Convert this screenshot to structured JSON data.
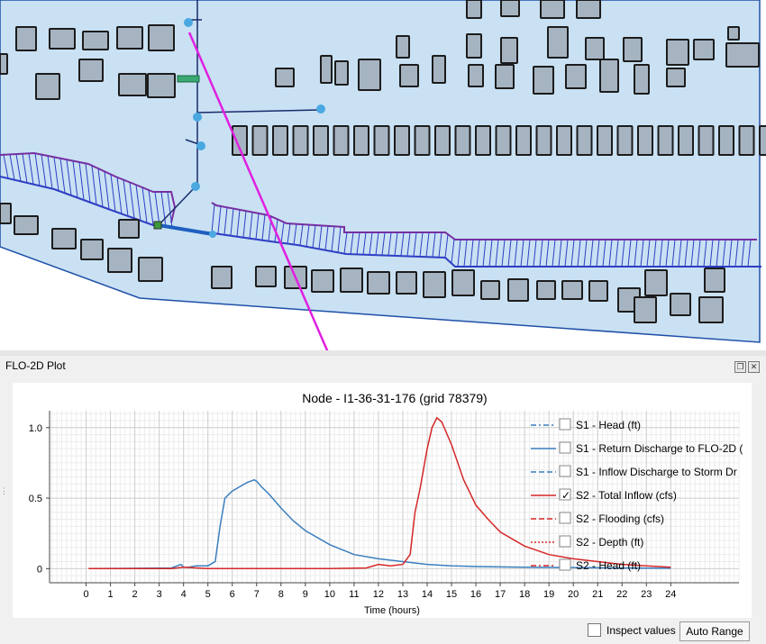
{
  "dock": {
    "title": "FLO-2D Plot"
  },
  "chart_data": {
    "type": "line",
    "title": "Node - I1-36-31-176 (grid 78379)",
    "xlabel": "Time (hours)",
    "ylabel": "",
    "xlim": [
      -1.5,
      26.8
    ],
    "ylim": [
      -0.1,
      1.12
    ],
    "x_ticks": [
      0,
      1,
      2,
      3,
      4,
      5,
      6,
      7,
      8,
      9,
      10,
      11,
      12,
      13,
      14,
      15,
      16,
      17,
      18,
      19,
      20,
      21,
      22,
      23,
      24
    ],
    "y_ticks": [
      {
        "value": 0,
        "label": "0"
      },
      {
        "value": 0.5,
        "label": "0.5"
      },
      {
        "value": 1.0,
        "label": "1.0"
      }
    ],
    "grid": true,
    "legend_position": "top-right",
    "legend": [
      {
        "label": "S1 - Head (ft)",
        "color": "#3a7fbf",
        "dash": "dashdot",
        "checked": false
      },
      {
        "label": "S1 - Return Discharge to FLO-2D (",
        "color": "#3a7fbf",
        "dash": "solid",
        "checked": false
      },
      {
        "label": "S1 - Inflow Discharge to Storm Dr",
        "color": "#3a7fbf",
        "dash": "dash",
        "checked": false
      },
      {
        "label": "S2 - Total Inflow (cfs)",
        "color": "#d62728",
        "dash": "solid",
        "checked": true
      },
      {
        "label": "S2 - Flooding (cfs)",
        "color": "#d62728",
        "dash": "dash",
        "checked": false
      },
      {
        "label": "S2 - Depth (ft)",
        "color": "#d62728",
        "dash": "dot",
        "checked": false
      },
      {
        "label": "S2 - Head (ft)",
        "color": "#d62728",
        "dash": "dashdot",
        "checked": false
      }
    ],
    "series": [
      {
        "name": "S1 - Return Discharge to FLO-2D (",
        "color": "#3a7fbf",
        "x": [
          0.1,
          3.5,
          3.9,
          4.0,
          4.2,
          4.5,
          5.0,
          5.3,
          5.5,
          5.7,
          6.0,
          6.3,
          6.6,
          6.9,
          7.0,
          7.2,
          7.5,
          8.0,
          8.5,
          9.0,
          10.0,
          11.0,
          12.0,
          13.0,
          14.0,
          15.0,
          16.0,
          18.0,
          20.0,
          22.0,
          24.0
        ],
        "y": [
          0,
          0.005,
          0.03,
          0.01,
          0.01,
          0.02,
          0.02,
          0.05,
          0.3,
          0.5,
          0.55,
          0.58,
          0.61,
          0.63,
          0.62,
          0.58,
          0.53,
          0.43,
          0.34,
          0.27,
          0.17,
          0.1,
          0.07,
          0.05,
          0.03,
          0.02,
          0.015,
          0.01,
          0.008,
          0.005,
          0.003
        ]
      },
      {
        "name": "S2 - Total Inflow (cfs)",
        "color": "#d62728",
        "x": [
          0.1,
          3.5,
          4.0,
          5.0,
          6.0,
          8.0,
          10.0,
          11.5,
          12.0,
          12.5,
          13.0,
          13.3,
          13.5,
          13.7,
          14.0,
          14.2,
          14.4,
          14.6,
          15.0,
          15.5,
          16.0,
          16.5,
          17.0,
          18.0,
          19.0,
          20.0,
          21.0,
          22.0,
          23.0,
          24.0
        ],
        "y": [
          0,
          0,
          0.01,
          0,
          0,
          0,
          0,
          0.005,
          0.03,
          0.02,
          0.03,
          0.1,
          0.4,
          0.56,
          0.85,
          1.0,
          1.07,
          1.04,
          0.88,
          0.63,
          0.45,
          0.35,
          0.26,
          0.16,
          0.1,
          0.07,
          0.05,
          0.03,
          0.02,
          0.01
        ]
      }
    ]
  },
  "controls": {
    "inspect_label": "Inspect values",
    "auto_range_label": "Auto Range"
  }
}
